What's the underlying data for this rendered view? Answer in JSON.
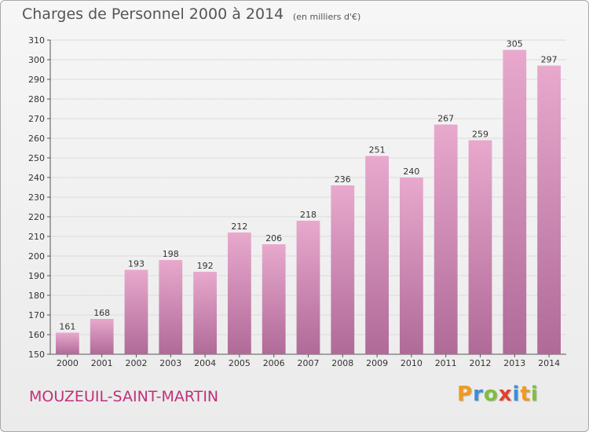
{
  "title": "Charges de Personnel 2000 à 2014",
  "subtitle": "(en milliers d'€)",
  "commune": "MOUZEUIL-SAINT-MARTIN",
  "logo": [
    "P",
    "r",
    "o",
    "x",
    "i",
    "t",
    "i"
  ],
  "colors": {
    "bar_light": "#e8a9cd",
    "bar_dark": "#b06a98",
    "commune": "#c0307a",
    "grid": "#dcdcdc"
  },
  "chart_data": {
    "type": "bar",
    "categories": [
      "2000",
      "2001",
      "2002",
      "2003",
      "2004",
      "2005",
      "2006",
      "2007",
      "2008",
      "2009",
      "2010",
      "2011",
      "2012",
      "2013",
      "2014"
    ],
    "values": [
      161,
      168,
      193,
      198,
      192,
      212,
      206,
      218,
      236,
      251,
      240,
      267,
      259,
      305,
      297
    ],
    "title": "Charges de Personnel 2000 à 2014",
    "subtitle": "(en milliers d'€)",
    "xlabel": "",
    "ylabel": "",
    "ylim": [
      150,
      310
    ],
    "yticks": [
      150,
      160,
      170,
      180,
      190,
      200,
      210,
      220,
      230,
      240,
      250,
      260,
      270,
      280,
      290,
      300,
      310
    ],
    "grid": true,
    "data_labels": true
  }
}
